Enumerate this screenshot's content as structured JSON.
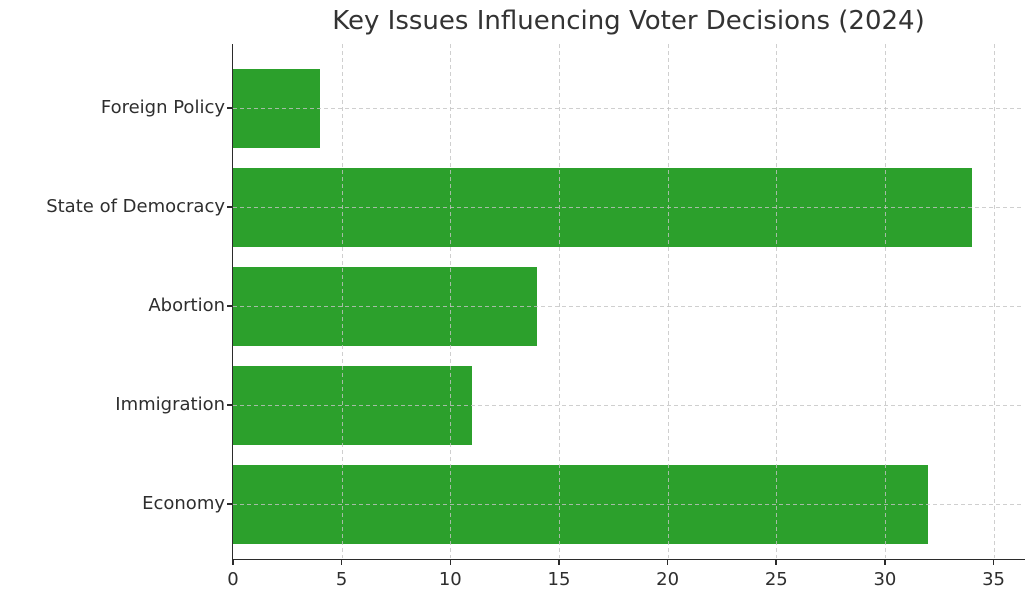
{
  "chart_data": {
    "type": "bar",
    "orientation": "horizontal",
    "title": "Key Issues Influencing Voter Decisions (2024)",
    "categories": [
      "Foreign Policy",
      "State of Democracy",
      "Abortion",
      "Immigration",
      "Economy"
    ],
    "values": [
      4,
      34,
      14,
      11,
      32
    ],
    "xlabel": "",
    "ylabel": "",
    "x_ticks": [
      0,
      5,
      10,
      15,
      20,
      25,
      30,
      35
    ],
    "xlim": [
      0,
      36.4
    ],
    "grid": true,
    "grid_style": "dashed",
    "legend": "none",
    "bar_color": "#2ca02c",
    "text_color": "#2e2e2e",
    "grid_color_rgba": "rgba(195,195,195,0.8)",
    "axis_color": "#2b2b2b",
    "background_color": "#ffffff"
  }
}
